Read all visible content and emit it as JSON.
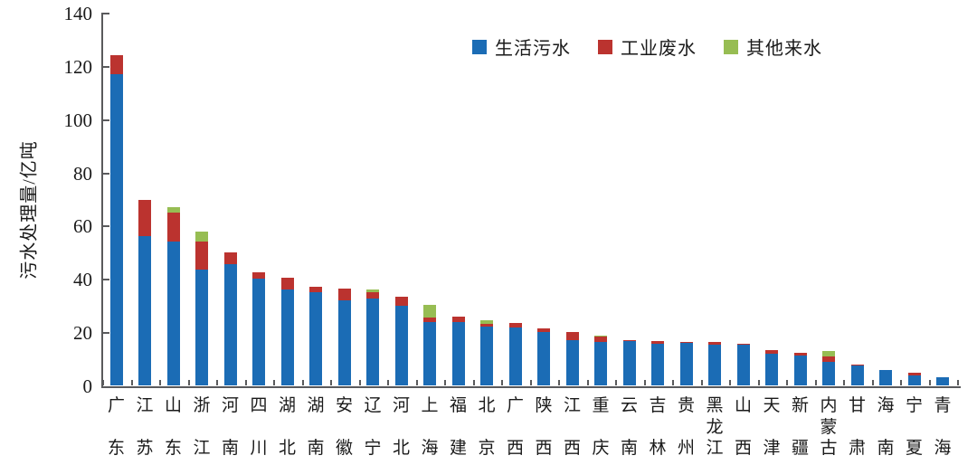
{
  "chart_data": {
    "type": "bar",
    "stacked": true,
    "title": "",
    "xlabel": "",
    "ylabel": "污水处理量/亿吨",
    "ylim": [
      0,
      140
    ],
    "yticks": [
      0,
      20,
      40,
      60,
      80,
      100,
      120,
      140
    ],
    "grid": false,
    "legend_position": "top-center",
    "axis_color": "#595a5c",
    "categories": [
      "广东",
      "江苏",
      "山东",
      "浙江",
      "河南",
      "四川",
      "湖北",
      "湖南",
      "安徽",
      "辽宁",
      "河北",
      "上海",
      "福建",
      "北京",
      "广西",
      "陕西",
      "江西",
      "重庆",
      "云南",
      "吉林",
      "贵州",
      "黑龙江",
      "山西",
      "天津",
      "新疆",
      "内蒙古",
      "甘肃",
      "海南",
      "宁夏",
      "青海"
    ],
    "series": [
      {
        "name": "生活污水",
        "color": "#1b6cb5",
        "values": [
          117,
          56,
          54,
          43.5,
          45.5,
          40,
          36,
          35,
          32,
          32.5,
          30,
          23.7,
          23.7,
          22,
          21.6,
          20,
          17,
          16.2,
          16.5,
          15.7,
          16,
          15.4,
          15.4,
          12,
          11.3,
          8.8,
          7.5,
          5.8,
          3.7,
          2.9
        ]
      },
      {
        "name": "工业废水",
        "color": "#bb332f",
        "values": [
          7,
          13.5,
          11,
          10.5,
          4.5,
          2.5,
          4.3,
          2,
          4.3,
          2.6,
          3.2,
          1.9,
          2.2,
          1.2,
          1.9,
          1.4,
          3,
          2,
          0.4,
          1,
          0.3,
          0.8,
          0.3,
          1.1,
          1,
          2.1,
          0.4,
          0,
          1,
          0
        ]
      },
      {
        "name": "其他来水",
        "color": "#97bd53",
        "values": [
          0,
          0,
          2,
          3.8,
          0,
          0,
          0,
          0,
          0,
          1,
          0,
          4.7,
          0,
          1.2,
          0,
          0,
          0,
          0.6,
          0,
          0,
          0,
          0,
          0,
          0,
          0,
          1.9,
          0,
          0,
          0,
          0
        ]
      }
    ]
  }
}
